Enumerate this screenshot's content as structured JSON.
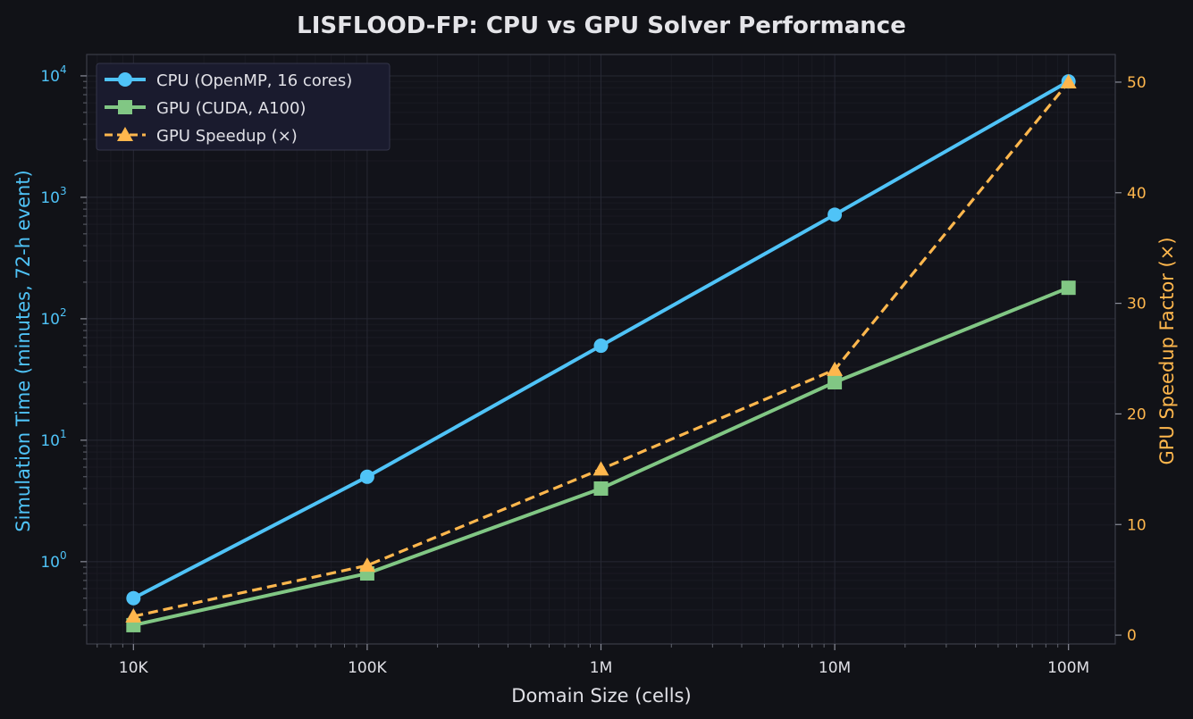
{
  "colors": {
    "background": "#111217",
    "plot_bg": "#12131a",
    "cpu": "#4fc3f7",
    "gpu": "#81c784",
    "speedup": "#ffb74d",
    "text": "#e0e0e6",
    "grid": "#24262f",
    "spine": "#3a3c48"
  },
  "chart_data": {
    "type": "line",
    "title": "LISFLOOD-FP: CPU vs GPU Solver Performance",
    "xlabel": "Domain Size (cells)",
    "ylabel_left": "Simulation Time (minutes, 72-h event)",
    "ylabel_right": "GPU Speedup Factor (×)",
    "x_scale": "log",
    "y_left_scale": "log",
    "y_right_scale": "linear",
    "x": [
      10000,
      100000,
      1000000,
      10000000,
      100000000
    ],
    "x_tick_labels": [
      "10K",
      "100K",
      "1M",
      "10M",
      "100M"
    ],
    "y_left_ticks": [
      {
        "base": "10",
        "exp": "0"
      },
      {
        "base": "10",
        "exp": "1"
      },
      {
        "base": "10",
        "exp": "2"
      },
      {
        "base": "10",
        "exp": "3"
      },
      {
        "base": "10",
        "exp": "4"
      }
    ],
    "y_right_ticks": [
      "0",
      "10",
      "20",
      "30",
      "40",
      "50"
    ],
    "ylim_left": [
      0.21,
      15000
    ],
    "ylim_right": [
      -0.8,
      52.5
    ],
    "grid": true,
    "legend_position": "top-left",
    "series": [
      {
        "name": "CPU (OpenMP, 16 cores)",
        "axis": "left",
        "marker": "circle",
        "style": "solid",
        "values": [
          0.5,
          5,
          60,
          720,
          9000
        ]
      },
      {
        "name": "GPU (CUDA, A100)",
        "axis": "left",
        "marker": "square",
        "style": "solid",
        "values": [
          0.3,
          0.8,
          4,
          30,
          180
        ]
      },
      {
        "name": "GPU Speedup (×)",
        "axis": "right",
        "marker": "triangle",
        "style": "dashed",
        "values": [
          1.7,
          6.3,
          15,
          24,
          50
        ]
      }
    ]
  }
}
